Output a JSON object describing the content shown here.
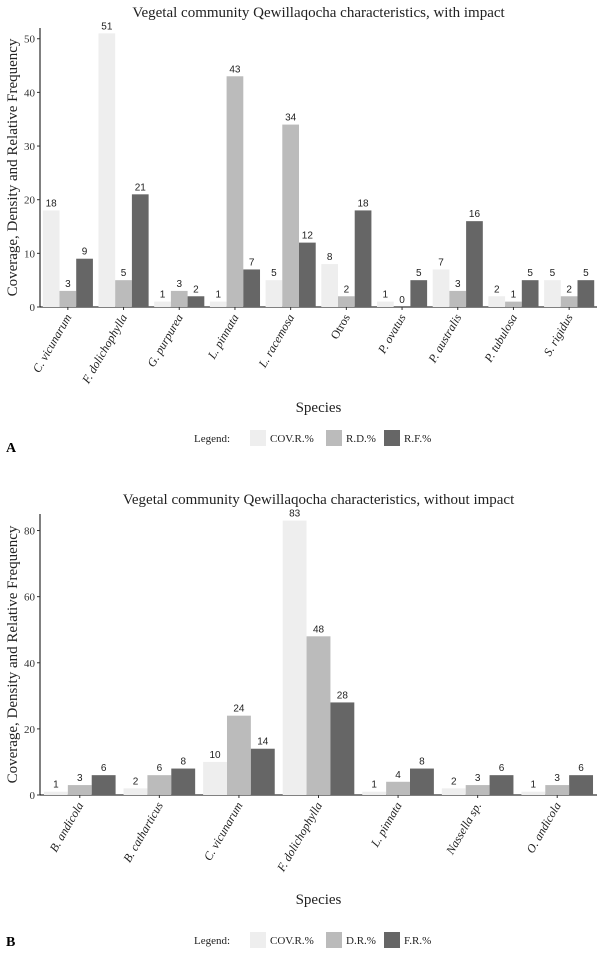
{
  "chart_data": [
    {
      "type": "bar",
      "panel_label": "A",
      "title": "Vegetal community Qewillaqocha characteristics, with impact",
      "xlabel": "Species",
      "ylabel": "Coverage, Density and Relative Frequency",
      "ylim": [
        0,
        52
      ],
      "yticks": [
        0,
        10,
        20,
        30,
        40,
        50
      ],
      "legend_title": "Legend:",
      "categories": [
        "C. vicunarum",
        "F. dolichophylla",
        "G. purpurea",
        "L. pinnata",
        "L. racemosa",
        "Otros",
        "P. ovatus",
        "P. australis",
        "P. tubulosa",
        "S. rigidus"
      ],
      "italic_categories": [
        true,
        true,
        true,
        true,
        true,
        false,
        true,
        true,
        true,
        true
      ],
      "series": [
        {
          "name": "COV.R.%",
          "color": "#eeeeee",
          "values": [
            18,
            51,
            1,
            1,
            5,
            8,
            1,
            7,
            2,
            5
          ]
        },
        {
          "name": "R.D.%",
          "color": "#bbbbbb",
          "values": [
            3,
            5,
            3,
            43,
            34,
            2,
            0,
            3,
            1,
            2
          ]
        },
        {
          "name": "R.F.%",
          "color": "#666666",
          "values": [
            9,
            21,
            2,
            7,
            12,
            18,
            5,
            16,
            5,
            5
          ]
        }
      ]
    },
    {
      "type": "bar",
      "panel_label": "B",
      "title": "Vegetal community Qewillaqocha characteristics, without impact",
      "xlabel": "Species",
      "ylabel": "Coverage, Density and Relative Frequency",
      "ylim": [
        0,
        85
      ],
      "yticks": [
        0,
        20,
        40,
        60,
        80
      ],
      "legend_title": "Legend:",
      "categories": [
        "B. andicola",
        "B. catharticus",
        "C. vicunarum",
        "F. dolichophylla",
        "L. pinnata",
        "Nassella sp.",
        "O. andicola"
      ],
      "italic_categories": [
        true,
        true,
        true,
        true,
        true,
        true,
        true
      ],
      "series": [
        {
          "name": "COV.R.%",
          "color": "#eeeeee",
          "values": [
            1,
            2,
            10,
            83,
            1,
            2,
            1
          ]
        },
        {
          "name": "D.R.%",
          "color": "#bbbbbb",
          "values": [
            3,
            6,
            24,
            48,
            4,
            3,
            3
          ]
        },
        {
          "name": "F.R.%",
          "color": "#666666",
          "values": [
            6,
            8,
            14,
            28,
            8,
            6,
            6
          ]
        }
      ]
    }
  ]
}
